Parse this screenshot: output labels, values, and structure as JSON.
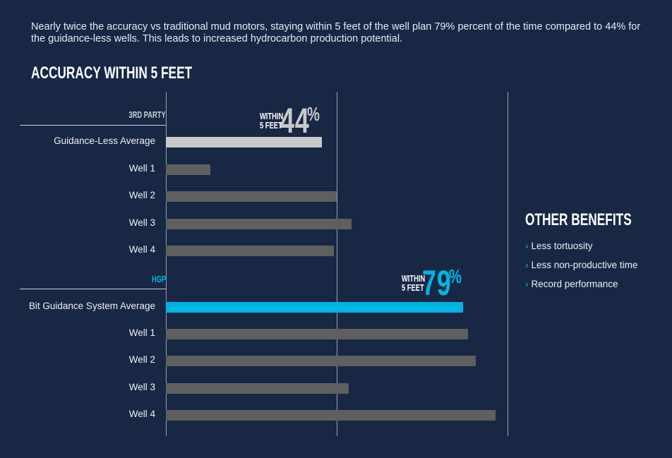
{
  "intro": "Nearly twice the accuracy vs traditional mud motors, staying within 5 feet of the well plan 79% percent of the time compared to 44% for the guidance-less wells. This leads to increased hydrocarbon production potential.",
  "colors": {
    "background": "#172744",
    "accent": "#00b5e2",
    "bar_gray": "#5f5f60",
    "bar_light": "#c8c9cb"
  },
  "chart_data": {
    "type": "bar",
    "orientation": "horizontal",
    "title": "ACCURACY WITHIN 5 FEET",
    "xlim": [
      0,
      100
    ],
    "grid": true,
    "groups": [
      {
        "name": "3RD PARTY",
        "callout_top": "WITHIN",
        "callout_bottom": "5 FEET",
        "callout_value": "44",
        "callout_unit": "%",
        "categories": [
          "Guidance-Less Average",
          "Well 1",
          "Well 2",
          "Well 3",
          "Well 4"
        ],
        "values": [
          45.7,
          13,
          50,
          54.3,
          49.2
        ]
      },
      {
        "name": "HGP",
        "callout_top": "WITHIN",
        "callout_bottom": "5 FEET",
        "callout_value": "79",
        "callout_unit": "%",
        "categories": [
          "Bit Guidance System Average",
          "Well 1",
          "Well 2",
          "Well 3",
          "Well 4"
        ],
        "values": [
          87,
          88.4,
          90.7,
          53.5,
          96.5
        ]
      }
    ]
  },
  "benefits": {
    "title": "OTHER BENEFITS",
    "items": [
      "Less tortuosity",
      "Less non-productive time",
      "Record performance"
    ]
  }
}
